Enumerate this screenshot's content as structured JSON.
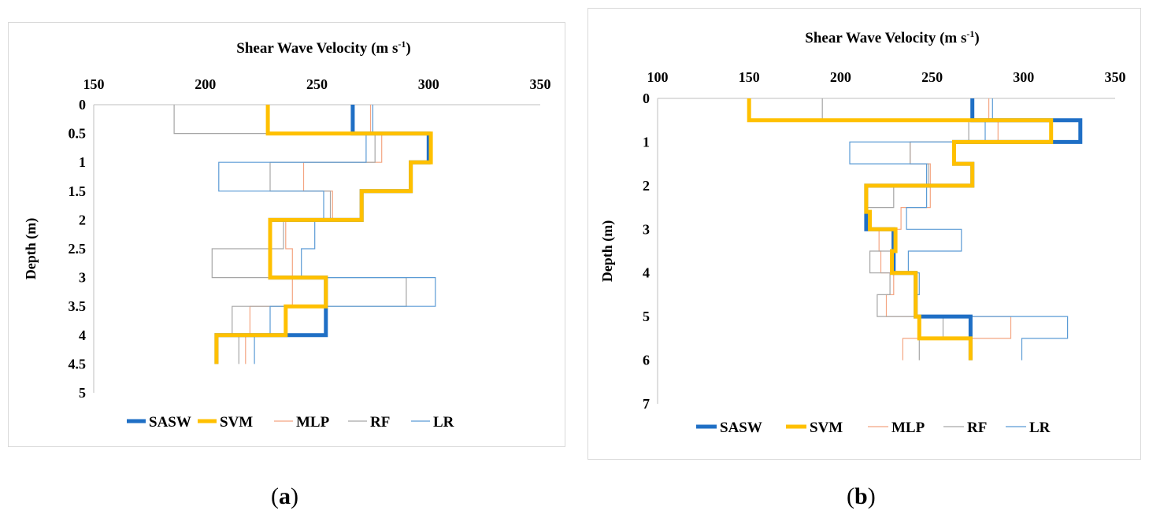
{
  "chart_data": [
    {
      "type": "line",
      "panel": "a",
      "title": "Shear Wave Velocity (m s",
      "title_superscript": "-1",
      "title_suffix": ")",
      "xlabel": "Shear Wave Velocity (m s-1)",
      "ylabel": "Depth (m)",
      "x_ticks": [
        "150",
        "200",
        "250",
        "300",
        "350"
      ],
      "y_ticks": [
        "0",
        "0.5",
        "1",
        "1.5",
        "2",
        "2.5",
        "3",
        "3.5",
        "4",
        "4.5",
        "5"
      ],
      "xlim": [
        150,
        350
      ],
      "ylim": [
        0,
        5
      ],
      "x_axis_position": "top",
      "y_reversed": true,
      "legend_position": "bottom",
      "series": [
        {
          "name": "SASW",
          "color": "#1f6fc5",
          "width": 5,
          "steps": [
            [
              266,
              0,
              0.5
            ],
            [
              300,
              0.5,
              1.0
            ],
            [
              292,
              1.0,
              1.5
            ],
            [
              270,
              1.5,
              2.0
            ],
            [
              229,
              2.0,
              3.0
            ],
            [
              254,
              3.0,
              4.0
            ],
            [
              205,
              4.0,
              4.5
            ]
          ]
        },
        {
          "name": "SVM",
          "color": "#ffc000",
          "width": 5,
          "steps": [
            [
              228,
              0,
              0.5
            ],
            [
              301,
              0.5,
              1.0
            ],
            [
              292,
              1.0,
              1.5
            ],
            [
              270,
              1.5,
              2.0
            ],
            [
              229,
              2.0,
              3.0
            ],
            [
              254,
              3.0,
              3.5
            ],
            [
              236,
              3.5,
              4.0
            ],
            [
              205,
              4.0,
              4.5
            ]
          ]
        },
        {
          "name": "MLP",
          "color": "#f4a582",
          "width": 1.2,
          "steps": [
            [
              274,
              0,
              0.5
            ],
            [
              279,
              0.5,
              1.0
            ],
            [
              244,
              1.0,
              1.5
            ],
            [
              257,
              1.5,
              2.0
            ],
            [
              236,
              2.0,
              2.5
            ],
            [
              239,
              2.5,
              3.0
            ],
            [
              239,
              3.0,
              3.5
            ],
            [
              220,
              3.5,
              4.0
            ],
            [
              218,
              4.0,
              4.5
            ]
          ]
        },
        {
          "name": "RF",
          "color": "#a6a6a6",
          "width": 1.2,
          "steps": [
            [
              186,
              0,
              0.5
            ],
            [
              276,
              0.5,
              1.0
            ],
            [
              229,
              1.0,
              1.5
            ],
            [
              256,
              1.5,
              2.0
            ],
            [
              235,
              2.0,
              2.5
            ],
            [
              203,
              2.5,
              3.0
            ],
            [
              290,
              3.0,
              3.5
            ],
            [
              212,
              3.5,
              4.0
            ],
            [
              215,
              4.0,
              4.5
            ]
          ]
        },
        {
          "name": "LR",
          "color": "#5b9bd5",
          "width": 1.2,
          "steps": [
            [
              275,
              0,
              0.5
            ],
            [
              272,
              0.5,
              1.0
            ],
            [
              206,
              1.0,
              1.5
            ],
            [
              253,
              1.5,
              2.0
            ],
            [
              249,
              2.0,
              2.5
            ],
            [
              243,
              2.5,
              3.0
            ],
            [
              303,
              3.0,
              3.5
            ],
            [
              229,
              3.5,
              4.0
            ],
            [
              222,
              4.0,
              4.5
            ]
          ]
        }
      ]
    },
    {
      "type": "line",
      "panel": "b",
      "title": "Shear Wave Velocity (m s",
      "title_superscript": "-1",
      "title_suffix": ")",
      "xlabel": "Shear Wave Velocity (m s-1)",
      "ylabel": "Depth (m)",
      "x_ticks": [
        "100",
        "150",
        "200",
        "250",
        "300",
        "350"
      ],
      "y_ticks": [
        "0",
        "1",
        "2",
        "3",
        "4",
        "5",
        "6",
        "7"
      ],
      "xlim": [
        100,
        350
      ],
      "ylim": [
        0,
        7
      ],
      "x_axis_position": "top",
      "y_reversed": true,
      "legend_position": "bottom",
      "series": [
        {
          "name": "SASW",
          "color": "#1f6fc5",
          "width": 5,
          "steps": [
            [
              272,
              0,
              0.5
            ],
            [
              331,
              0.5,
              1.0
            ],
            [
              262,
              1.0,
              1.5
            ],
            [
              272,
              1.5,
              2.0
            ],
            [
              214,
              2.0,
              3.0
            ],
            [
              229,
              3.0,
              4.0
            ],
            [
              241,
              4.0,
              5.0
            ],
            [
              271,
              5.0,
              6.0
            ]
          ]
        },
        {
          "name": "SVM",
          "color": "#ffc000",
          "width": 5,
          "steps": [
            [
              150,
              0,
              0.5
            ],
            [
              315,
              0.5,
              1.0
            ],
            [
              262,
              1.0,
              1.5
            ],
            [
              272,
              1.5,
              2.0
            ],
            [
              214,
              2.0,
              2.6
            ],
            [
              216,
              2.6,
              3.0
            ],
            [
              230,
              3.0,
              3.5
            ],
            [
              228,
              3.5,
              4.0
            ],
            [
              241,
              4.0,
              5.0
            ],
            [
              243,
              5.0,
              5.5
            ],
            [
              271,
              5.5,
              6.0
            ]
          ]
        },
        {
          "name": "MLP",
          "color": "#f4a582",
          "width": 1.2,
          "steps": [
            [
              281,
              0,
              0.5
            ],
            [
              286,
              0.5,
              1.0
            ],
            [
              238,
              1.0,
              1.5
            ],
            [
              249,
              1.5,
              2.0
            ],
            [
              249,
              2.0,
              2.5
            ],
            [
              233,
              2.5,
              3.0
            ],
            [
              221,
              3.0,
              3.5
            ],
            [
              222,
              3.5,
              4.0
            ],
            [
              229,
              4.0,
              4.5
            ],
            [
              225,
              4.5,
              5.0
            ],
            [
              293,
              5.0,
              5.5
            ],
            [
              234,
              5.5,
              6.0
            ]
          ]
        },
        {
          "name": "RF",
          "color": "#a6a6a6",
          "width": 1.2,
          "steps": [
            [
              190,
              0,
              0.5
            ],
            [
              270,
              0.5,
              1.0
            ],
            [
              238,
              1.0,
              1.5
            ],
            [
              248,
              1.5,
              2.0
            ],
            [
              229,
              2.0,
              2.5
            ],
            [
              214,
              2.5,
              3.0
            ],
            [
              228,
              3.0,
              3.5
            ],
            [
              216,
              3.5,
              4.0
            ],
            [
              227,
              4.0,
              4.5
            ],
            [
              220,
              4.5,
              5.0
            ],
            [
              256,
              5.0,
              5.5
            ],
            [
              243,
              5.5,
              6.0
            ]
          ]
        },
        {
          "name": "LR",
          "color": "#5b9bd5",
          "width": 1.2,
          "steps": [
            [
              283,
              0,
              0.5
            ],
            [
              279,
              0.5,
              1.0
            ],
            [
              205,
              1.0,
              1.5
            ],
            [
              247,
              1.5,
              2.0
            ],
            [
              247,
              2.0,
              2.5
            ],
            [
              236,
              2.5,
              3.0
            ],
            [
              266,
              3.0,
              3.5
            ],
            [
              237,
              3.5,
              4.0
            ],
            [
              243,
              4.0,
              4.5
            ],
            [
              241,
              4.5,
              5.0
            ],
            [
              324,
              5.0,
              5.5
            ],
            [
              299,
              5.5,
              6.0
            ]
          ]
        }
      ]
    }
  ],
  "captions": {
    "a": {
      "open": "(",
      "letter": "a",
      "close": ")"
    },
    "b": {
      "open": "(",
      "letter": "b",
      "close": ")"
    }
  }
}
